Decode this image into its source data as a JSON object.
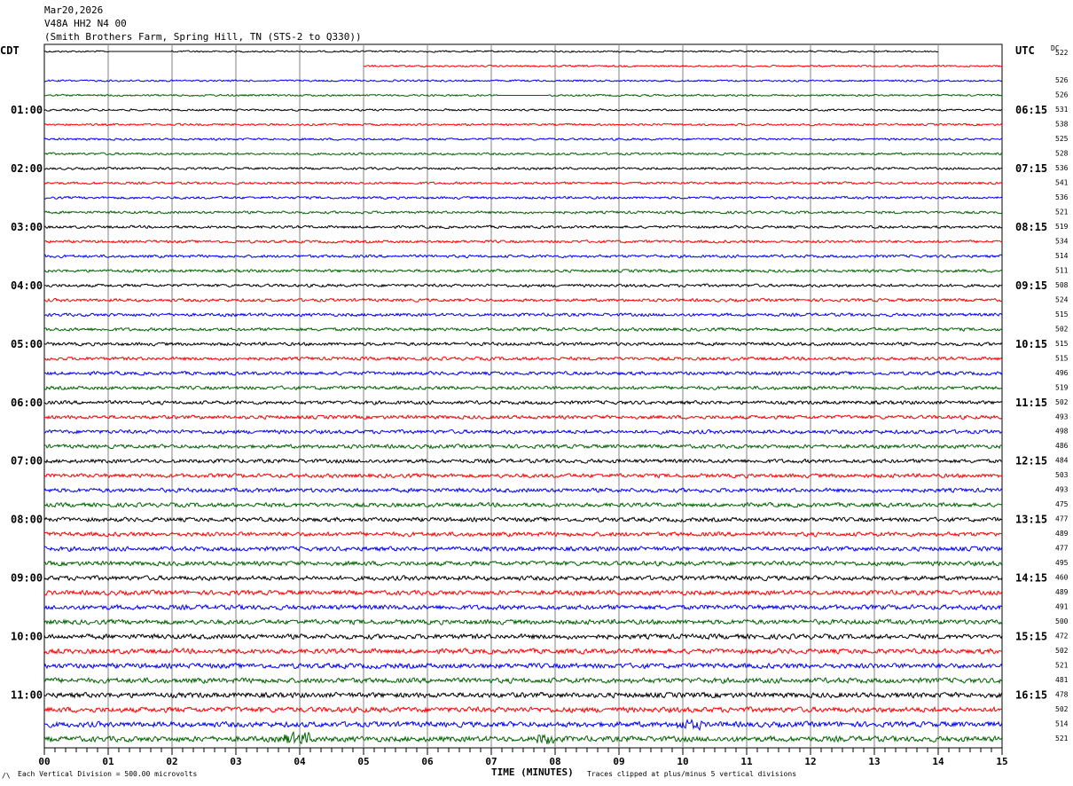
{
  "header": {
    "date": "Mar20,2026",
    "channel": "V48A HH2 N4 00",
    "station": "(Smith Brothers Farm, Spring Hill, TN (STS-2 to Q330))"
  },
  "left_timezone": "CDT",
  "right_timezone": "UTC",
  "dc_label": "DC",
  "footer": {
    "scale_note": "Each Vertical Division =  500.00 microvolts",
    "x_title": "TIME (MINUTES)",
    "clip_note": "Traces clipped at plus/minus 5 vertical divisions"
  },
  "chart_data": {
    "type": "line",
    "subtype": "helicorder",
    "xlabel": "TIME (MINUTES)",
    "xlim": [
      0,
      15
    ],
    "x_ticks": [
      "00",
      "01",
      "02",
      "03",
      "04",
      "05",
      "06",
      "07",
      "08",
      "09",
      "10",
      "11",
      "12",
      "13",
      "14",
      "15"
    ],
    "grid": true,
    "trace_colors": [
      "#000000",
      "#ff0000",
      "#0000ff",
      "#006400"
    ],
    "rows_per_hour": 4,
    "left_hour_labels": [
      "",
      "01:00",
      "02:00",
      "03:00",
      "04:00",
      "05:00",
      "06:00",
      "07:00",
      "08:00",
      "09:00",
      "10:00",
      "11:00"
    ],
    "right_hour_labels": [
      "",
      "06:15",
      "07:15",
      "08:15",
      "09:15",
      "10:15",
      "11:15",
      "12:15",
      "13:15",
      "14:15",
      "15:15",
      "16:15"
    ],
    "dc_offsets": [
      "522",
      "",
      "526",
      "526",
      "531",
      "538",
      "525",
      "528",
      "536",
      "541",
      "536",
      "521",
      "519",
      "534",
      "514",
      "511",
      "508",
      "524",
      "515",
      "502",
      "515",
      "515",
      "496",
      "519",
      "502",
      "493",
      "498",
      "486",
      "484",
      "503",
      "493",
      "475",
      "477",
      "489",
      "477",
      "495",
      "460",
      "489",
      "491",
      "500",
      "472",
      "502",
      "521",
      "481",
      "478",
      "502",
      "514",
      "521"
    ]
  }
}
